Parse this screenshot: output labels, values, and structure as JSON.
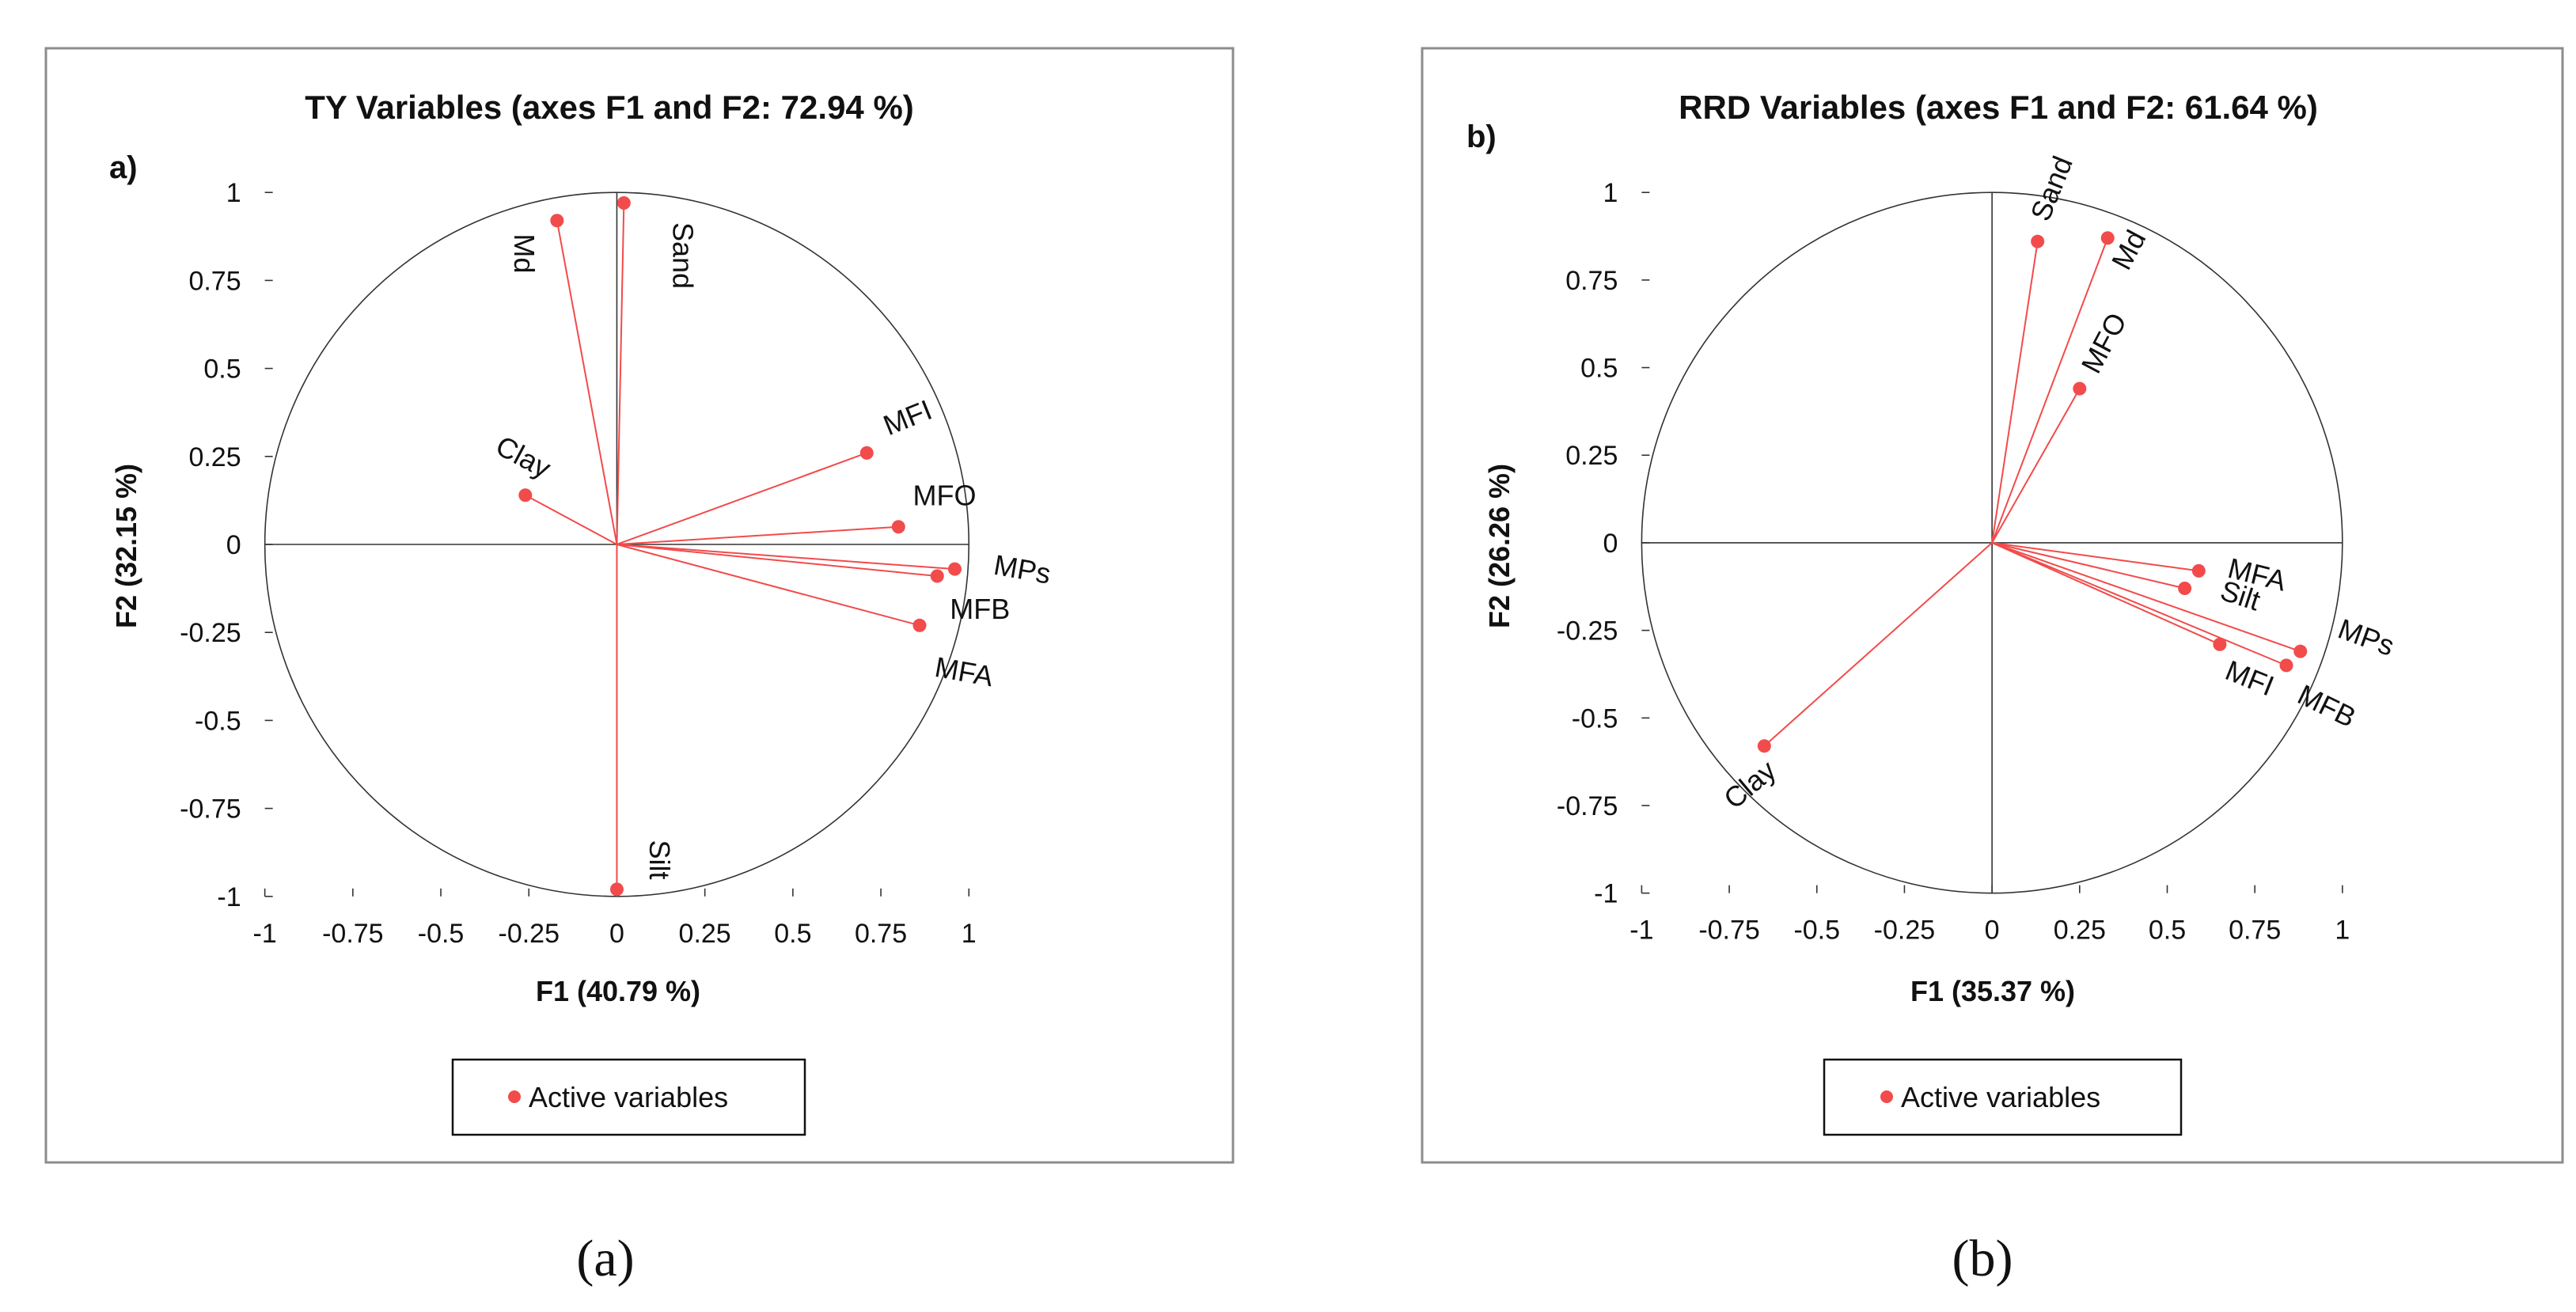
{
  "chart_data": [
    {
      "type": "scatter",
      "panel_tag": "a)",
      "caption": "(a)",
      "title": "TY Variables (axes F1 and F2: 72.94 %)",
      "xlabel": "F1 (40.79 %)",
      "ylabel": "F2 (32.15 %)",
      "xlim": [
        -1,
        1
      ],
      "ylim": [
        -1,
        1
      ],
      "xticks": [
        "-1",
        "-0.75",
        "-0.5",
        "-0.25",
        "0",
        "0.25",
        "0.5",
        "0.75",
        "1"
      ],
      "yticks": [
        "1",
        "0.75",
        "0.5",
        "0.25",
        "0",
        "-0.25",
        "-0.5",
        "-0.75",
        "-1"
      ],
      "legend": "Active variables",
      "marker_color": "#f24b4b",
      "points": [
        {
          "name": "Md",
          "x": -0.17,
          "y": 0.92
        },
        {
          "name": "Sand",
          "x": 0.02,
          "y": 0.97
        },
        {
          "name": "MFI",
          "x": 0.71,
          "y": 0.26
        },
        {
          "name": "Clay",
          "x": -0.26,
          "y": 0.14
        },
        {
          "name": "MFO",
          "x": 0.8,
          "y": 0.05
        },
        {
          "name": "MPs",
          "x": 0.96,
          "y": -0.07
        },
        {
          "name": "MFB",
          "x": 0.91,
          "y": -0.09
        },
        {
          "name": "MFA",
          "x": 0.86,
          "y": -0.23
        },
        {
          "name": "Silt",
          "x": 0.0,
          "y": -0.98
        }
      ]
    },
    {
      "type": "scatter",
      "panel_tag": "b)",
      "caption": "(b)",
      "title": "RRD Variables (axes F1 and F2: 61.64 %)",
      "xlabel": "F1 (35.37 %)",
      "ylabel": "F2 (26.26 %)",
      "xlim": [
        -1,
        1
      ],
      "ylim": [
        -1,
        1
      ],
      "xticks": [
        "-1",
        "-0.75",
        "-0.5",
        "-0.25",
        "0",
        "0.25",
        "0.5",
        "0.75",
        "1"
      ],
      "yticks": [
        "1",
        "0.75",
        "0.5",
        "0.25",
        "0",
        "-0.25",
        "-0.5",
        "-0.75",
        "-1"
      ],
      "legend": "Active variables",
      "marker_color": "#f24b4b",
      "points": [
        {
          "name": "Sand",
          "x": 0.13,
          "y": 0.86
        },
        {
          "name": "Md",
          "x": 0.33,
          "y": 0.87
        },
        {
          "name": "MFO",
          "x": 0.25,
          "y": 0.44
        },
        {
          "name": "MFA",
          "x": 0.59,
          "y": -0.08
        },
        {
          "name": "Silt",
          "x": 0.55,
          "y": -0.13
        },
        {
          "name": "MPs",
          "x": 0.88,
          "y": -0.31
        },
        {
          "name": "MFI",
          "x": 0.65,
          "y": -0.29
        },
        {
          "name": "MFB",
          "x": 0.84,
          "y": -0.35
        },
        {
          "name": "Clay",
          "x": -0.65,
          "y": -0.58
        }
      ]
    }
  ]
}
